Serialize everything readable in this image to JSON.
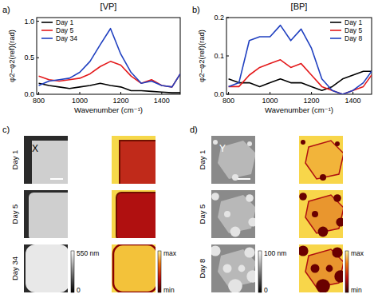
{
  "chart_data": [
    {
      "type": "line",
      "label": "a)",
      "title": "[VP]",
      "x_label": "Wavenumber (cm⁻¹)",
      "y_label": "φ2−φ2(ref)(rad)",
      "x": [
        800,
        850,
        900,
        950,
        1000,
        1050,
        1100,
        1150,
        1200,
        1250,
        1300,
        1350,
        1400,
        1450,
        1490
      ],
      "series": [
        {
          "name": "Day 1",
          "color": "#000000",
          "values": [
            0.15,
            0.12,
            0.1,
            0.08,
            0.1,
            0.12,
            0.15,
            0.12,
            0.1,
            0.05,
            0.05,
            0.04,
            0.03,
            0.02,
            0.02
          ]
        },
        {
          "name": "Day 5",
          "color": "#e41a1c",
          "values": [
            0.25,
            0.2,
            0.18,
            0.2,
            0.22,
            0.28,
            0.38,
            0.45,
            0.4,
            0.25,
            0.15,
            0.2,
            0.12,
            0.1,
            0.28
          ]
        },
        {
          "name": "Day 34",
          "color": "#2040c0",
          "values": [
            0.12,
            0.18,
            0.2,
            0.22,
            0.3,
            0.45,
            0.68,
            0.9,
            0.55,
            0.3,
            0.15,
            0.18,
            0.12,
            0.1,
            0.28
          ]
        }
      ],
      "xlim": [
        790,
        1490
      ],
      "ylim": [
        0,
        1.05
      ],
      "xticks": [
        800,
        1000,
        1200,
        1400
      ],
      "yticks": [
        {
          "value": 0,
          "label": "0.0"
        },
        0.5,
        {
          "value": 1,
          "label": "1.0"
        }
      ],
      "legend": "upper-left",
      "grid": false
    },
    {
      "type": "line",
      "label": "b)",
      "title": "[BP]",
      "x_label": "Wavenumber (cm⁻¹)",
      "y_label": "φ2−φ2(ref)(rad)",
      "x": [
        800,
        850,
        900,
        950,
        1000,
        1050,
        1100,
        1150,
        1200,
        1250,
        1300,
        1350,
        1400,
        1450,
        1490
      ],
      "series": [
        {
          "name": "Day 1",
          "color": "#000000",
          "values": [
            0.04,
            0.03,
            0.03,
            0.02,
            0.03,
            0.04,
            0.03,
            0.03,
            0.02,
            0.01,
            0.02,
            0.04,
            0.05,
            0.06,
            0.06
          ]
        },
        {
          "name": "Day 5",
          "color": "#e41a1c",
          "values": [
            0.02,
            0.02,
            0.05,
            0.07,
            0.08,
            0.09,
            0.07,
            0.08,
            0.05,
            0.02,
            0.01,
            0.0,
            0.01,
            0.02,
            0.05
          ]
        },
        {
          "name": "Day 8",
          "color": "#2040c0",
          "values": [
            0.02,
            0.03,
            0.14,
            0.15,
            0.15,
            0.18,
            0.14,
            0.17,
            0.12,
            0.04,
            0.01,
            0.0,
            0.01,
            0.03,
            0.06
          ]
        }
      ],
      "xlim": [
        790,
        1490
      ],
      "ylim": [
        0,
        0.2
      ],
      "xticks": [
        800,
        1000,
        1200,
        1400
      ],
      "yticks": [
        {
          "value": 0,
          "label": "0.0"
        },
        0.1,
        0.2
      ],
      "legend": "upper-right",
      "grid": false
    }
  ],
  "image_panels": [
    {
      "label": "c)",
      "rows": [
        "Day 1",
        "Day 5",
        "Day 34"
      ],
      "marker": "X",
      "height_max": "550 nm",
      "height_min": "0",
      "signal_max": "max",
      "signal_min": "min"
    },
    {
      "label": "d)",
      "rows": [
        "Day 1",
        "Day 5",
        "Day 8"
      ],
      "marker": "Y",
      "height_max": "100 nm",
      "height_min": "0",
      "signal_max": "max",
      "signal_min": "min"
    }
  ]
}
